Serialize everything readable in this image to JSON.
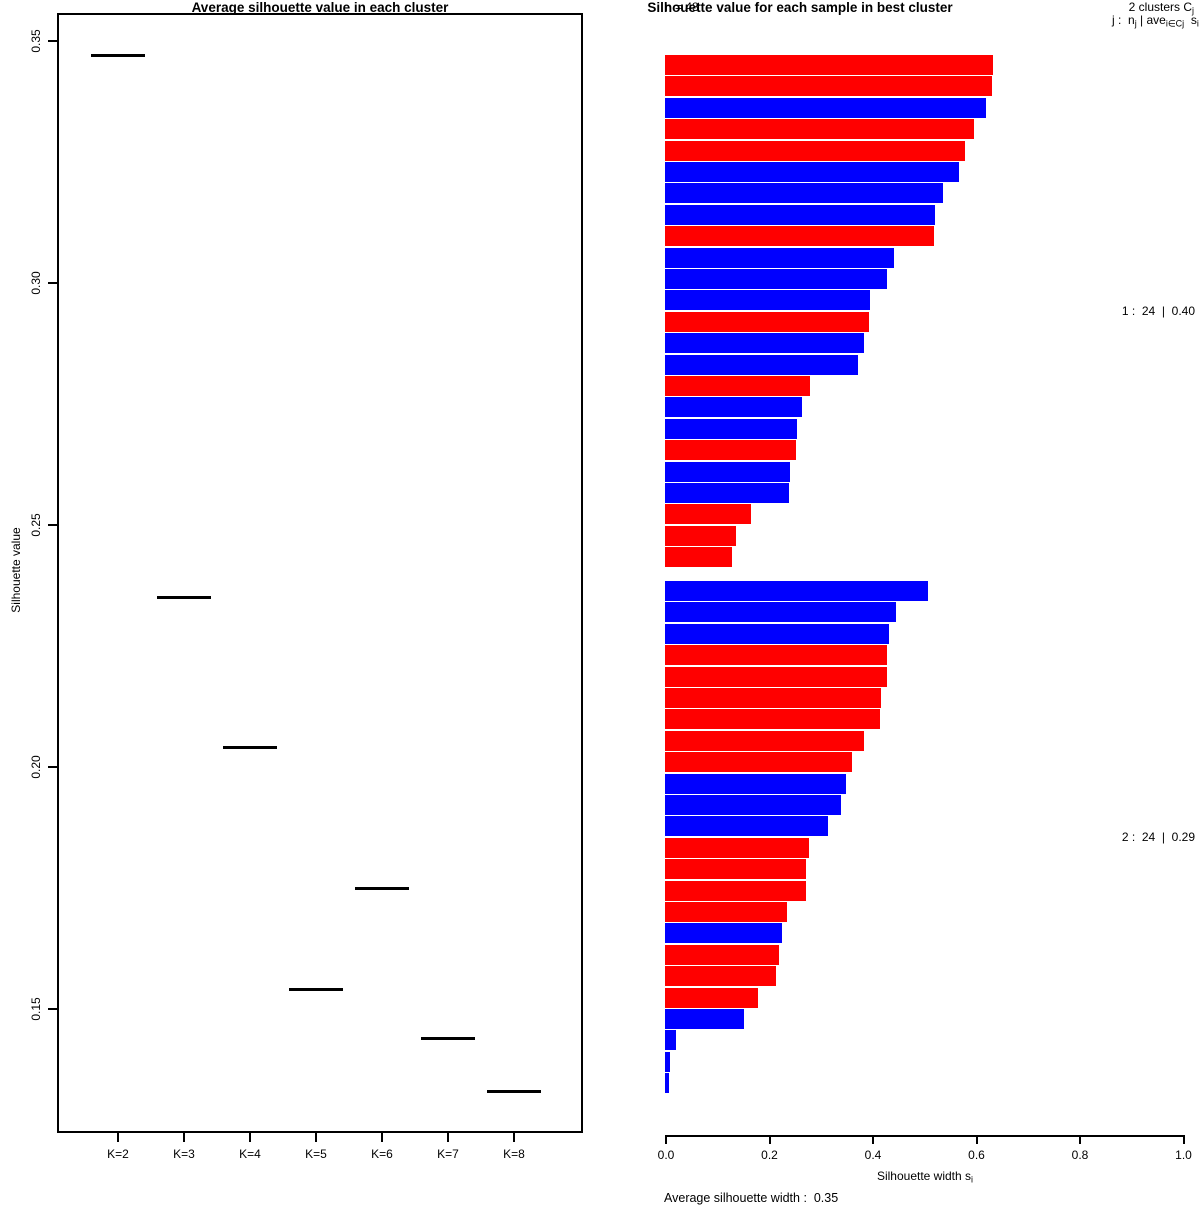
{
  "chart_data": [
    {
      "type": "scatter",
      "marker": "horizontal-segment",
      "title": "Average silhouette value in each cluster",
      "xlabel": "",
      "ylabel": "Silhouette value",
      "categories": [
        "K=2",
        "K=3",
        "K=4",
        "K=5",
        "K=6",
        "K=7",
        "K=8"
      ],
      "values": [
        0.347,
        0.235,
        0.204,
        0.154,
        0.175,
        0.144,
        0.133
      ],
      "ylim": [
        0.13,
        0.355
      ],
      "yticks": [
        0.35,
        0.3,
        0.25,
        0.2,
        0.15
      ],
      "grid": false,
      "box": true
    },
    {
      "type": "bar",
      "orientation": "horizontal",
      "title": "Silhouette value for each sample in best cluster",
      "n": 48,
      "xlabel": "Silhouette width si",
      "xlim": [
        0,
        1
      ],
      "xticks": [
        0.0,
        0.2,
        0.4,
        0.6,
        0.8,
        1.0
      ],
      "annotation": "Average silhouette width :  0.35",
      "colors": {
        "red": "#FF0000",
        "blue": "#0000FF"
      },
      "clusters": [
        {
          "label": "1 :  24  |  0.40",
          "size": 24,
          "avg_width": 0.4,
          "bars": [
            {
              "v": 0.634,
              "c": "red"
            },
            {
              "v": 0.632,
              "c": "red"
            },
            {
              "v": 0.62,
              "c": "blue"
            },
            {
              "v": 0.597,
              "c": "red"
            },
            {
              "v": 0.58,
              "c": "red"
            },
            {
              "v": 0.568,
              "c": "blue"
            },
            {
              "v": 0.537,
              "c": "blue"
            },
            {
              "v": 0.522,
              "c": "blue"
            },
            {
              "v": 0.52,
              "c": "red"
            },
            {
              "v": 0.443,
              "c": "blue"
            },
            {
              "v": 0.429,
              "c": "blue"
            },
            {
              "v": 0.397,
              "c": "blue"
            },
            {
              "v": 0.394,
              "c": "red"
            },
            {
              "v": 0.385,
              "c": "blue"
            },
            {
              "v": 0.372,
              "c": "blue"
            },
            {
              "v": 0.28,
              "c": "red"
            },
            {
              "v": 0.265,
              "c": "blue"
            },
            {
              "v": 0.255,
              "c": "blue"
            },
            {
              "v": 0.253,
              "c": "red"
            },
            {
              "v": 0.242,
              "c": "blue"
            },
            {
              "v": 0.24,
              "c": "blue"
            },
            {
              "v": 0.166,
              "c": "red"
            },
            {
              "v": 0.137,
              "c": "red"
            },
            {
              "v": 0.13,
              "c": "red"
            }
          ]
        },
        {
          "label": "2 :  24  |  0.29",
          "size": 24,
          "avg_width": 0.29,
          "bars": [
            {
              "v": 0.508,
              "c": "blue"
            },
            {
              "v": 0.446,
              "c": "blue"
            },
            {
              "v": 0.433,
              "c": "blue"
            },
            {
              "v": 0.429,
              "c": "red"
            },
            {
              "v": 0.429,
              "c": "red"
            },
            {
              "v": 0.417,
              "c": "red"
            },
            {
              "v": 0.415,
              "c": "red"
            },
            {
              "v": 0.385,
              "c": "red"
            },
            {
              "v": 0.361,
              "c": "red"
            },
            {
              "v": 0.35,
              "c": "blue"
            },
            {
              "v": 0.34,
              "c": "blue"
            },
            {
              "v": 0.315,
              "c": "blue"
            },
            {
              "v": 0.278,
              "c": "red"
            },
            {
              "v": 0.272,
              "c": "red"
            },
            {
              "v": 0.272,
              "c": "red"
            },
            {
              "v": 0.236,
              "c": "red"
            },
            {
              "v": 0.226,
              "c": "blue"
            },
            {
              "v": 0.22,
              "c": "red"
            },
            {
              "v": 0.215,
              "c": "red"
            },
            {
              "v": 0.18,
              "c": "red"
            },
            {
              "v": 0.153,
              "c": "blue"
            },
            {
              "v": 0.021,
              "c": "blue"
            },
            {
              "v": 0.01,
              "c": "blue"
            },
            {
              "v": 0.007,
              "c": "blue"
            }
          ]
        }
      ]
    }
  ],
  "left_panel": {
    "ytick_labels": [
      "0.35",
      "0.30",
      "0.25",
      "0.20",
      "0.15"
    ]
  },
  "right_panel": {
    "n_label": "n = 48",
    "legend1_text": "2 clusters C",
    "legend1_sub": "j",
    "legend2": {
      "p1": "j :  n",
      "p1s": "j",
      "p2": " | ave",
      "p2s": "i∈Cj",
      "p3": "  s",
      "p3s": "i"
    },
    "cluster_labels": [
      "1 :  24  |  0.40",
      "2 :  24  |  0.29"
    ],
    "xtick_labels": [
      "0.0",
      "0.2",
      "0.4",
      "0.6",
      "0.8",
      "1.0"
    ],
    "xlabel_text": "Silhouette width s",
    "xlabel_sub": "i",
    "footer": "Average silhouette width :  0.35"
  }
}
